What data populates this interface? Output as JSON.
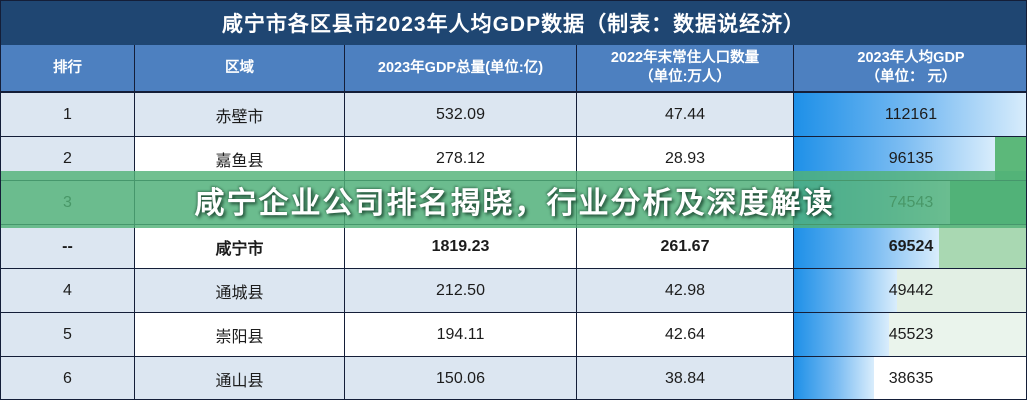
{
  "title": "咸宁市各区县市2023年人均GDP数据（制表：数据说经济）",
  "overlay": {
    "text": "咸宁企业公司排名揭晓，行业分析及深度解读",
    "bg": "rgba(82,178,120,0.82)"
  },
  "table": {
    "columns": [
      {
        "label": "排行",
        "unit": ""
      },
      {
        "label": "区域",
        "unit": ""
      },
      {
        "label": "2023年GDP总量(单位:亿)",
        "unit": ""
      },
      {
        "label": "2022年末常住人口数量",
        "unit": "（单位:万人）"
      },
      {
        "label": "2023年人均GDP",
        "unit": "（单位： 元）"
      }
    ],
    "rows": [
      {
        "rank": "1",
        "region": "赤壁市",
        "gdp": "532.09",
        "population": "47.44",
        "per_capita": "112161",
        "bar_pct": 100,
        "remainder_color": "transparent",
        "bold": false,
        "zebra": "blue"
      },
      {
        "rank": "2",
        "region": "嘉鱼县",
        "gdp": "278.12",
        "population": "28.93",
        "per_capita": "96135",
        "bar_pct": 85.7,
        "remainder_color": "#5cb87a",
        "bold": false,
        "zebra": "white"
      },
      {
        "rank": "3",
        "region": "",
        "gdp": "",
        "population": "",
        "per_capita": "74543",
        "bar_pct": 66.5,
        "remainder_color": "#4fb078",
        "bold": false,
        "zebra": "blue"
      },
      {
        "rank": "--",
        "region": "咸宁市",
        "gdp": "1819.23",
        "population": "261.67",
        "per_capita": "69524",
        "bar_pct": 62,
        "remainder_color": "#a9d8b2",
        "bold": true,
        "zebra": "white"
      },
      {
        "rank": "4",
        "region": "通城县",
        "gdp": "212.50",
        "population": "42.98",
        "per_capita": "49442",
        "bar_pct": 44.1,
        "remainder_color": "#e2efe4",
        "bold": false,
        "zebra": "blue"
      },
      {
        "rank": "5",
        "region": "崇阳县",
        "gdp": "194.11",
        "population": "42.64",
        "per_capita": "45523",
        "bar_pct": 40.6,
        "remainder_color": "#eaf4ec",
        "bold": false,
        "zebra": "white"
      },
      {
        "rank": "6",
        "region": "通山县",
        "gdp": "150.06",
        "population": "38.84",
        "per_capita": "38635",
        "bar_pct": 34.4,
        "remainder_color": "#ffffff",
        "bold": false,
        "zebra": "blue"
      }
    ]
  },
  "colors": {
    "title_bar": "#1f4672",
    "header_bg": "#4d80c0",
    "row_blue": "#dce6f1",
    "border": "#141e38",
    "bar_start": "#1e90e8",
    "bar_end": "#d9edfc",
    "text_dark": "#1c1c1c"
  }
}
